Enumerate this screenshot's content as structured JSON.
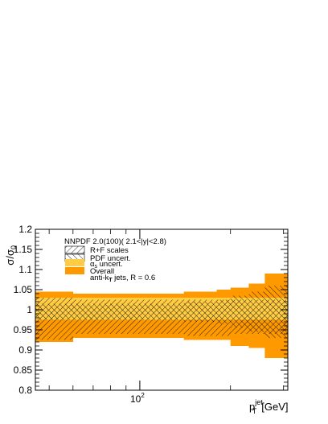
{
  "chart_data": {
    "type": "area",
    "title": "",
    "xlabel": {
      "main": "p",
      "sub": "T",
      "sup": "jet",
      "unit": "[GeV]"
    },
    "ylabel": {
      "main": "σ/σ",
      "sub": "0"
    },
    "xscale": "log",
    "xlim": [
      45,
      310
    ],
    "ylim": [
      0.8,
      1.2
    ],
    "x_ticks": [
      {
        "value": 100,
        "base": "10",
        "exp": "2"
      }
    ],
    "y_ticks": [
      "0.8",
      "0.85",
      "0.9",
      "0.95",
      "1",
      "1.05",
      "1.1",
      "1.15",
      "1.2"
    ],
    "bin_edges": [
      45,
      60,
      80,
      110,
      140,
      180,
      200,
      230,
      260,
      310
    ],
    "series": [
      {
        "name": "Overall",
        "color": "#ff9900",
        "lower": [
          0.92,
          0.93,
          0.93,
          0.93,
          0.925,
          0.925,
          0.91,
          0.905,
          0.88
        ],
        "upper": [
          1.045,
          1.04,
          1.04,
          1.04,
          1.045,
          1.05,
          1.055,
          1.065,
          1.09
        ]
      },
      {
        "name": "α_s uncert.",
        "color": "#ffcc44",
        "lower": [
          0.975,
          0.975,
          0.975,
          0.975,
          0.975,
          0.975,
          0.975,
          0.975,
          0.975
        ],
        "upper": [
          1.03,
          1.03,
          1.03,
          1.03,
          1.03,
          1.03,
          1.03,
          1.03,
          1.03
        ]
      },
      {
        "name": "R+F scales",
        "hatch": "diagonal-forward",
        "lower": [
          0.925,
          0.94,
          0.94,
          0.94,
          0.935,
          0.935,
          0.94,
          0.94,
          0.94
        ],
        "upper": [
          1.03,
          1.025,
          1.025,
          1.025,
          1.025,
          1.025,
          1.025,
          1.025,
          1.025
        ]
      },
      {
        "name": "PDF uncert.",
        "hatch": "diagonal-backward",
        "lower": [
          0.975,
          0.975,
          0.975,
          0.975,
          0.97,
          0.965,
          0.955,
          0.945,
          0.93
        ],
        "upper": [
          1.015,
          1.015,
          1.015,
          1.015,
          1.02,
          1.025,
          1.035,
          1.045,
          1.06
        ]
      }
    ],
    "legend": {
      "placement": "top-left",
      "header": "NNPDF 2.0(100)( 2.1<|y|<2.8)",
      "items": [
        {
          "label": "R+F scales",
          "style": "hatch-forward"
        },
        {
          "label": "PDF uncert.",
          "style": "hatch-backward"
        },
        {
          "label": "α",
          "label_sub": "s",
          "label_tail": " uncert.",
          "style": "fill-light"
        },
        {
          "label": "Overall",
          "style": "fill-dark"
        }
      ],
      "footer": {
        "pre": "anti-k",
        "sub": "T",
        "post": " jets, R = 0.6"
      }
    }
  }
}
